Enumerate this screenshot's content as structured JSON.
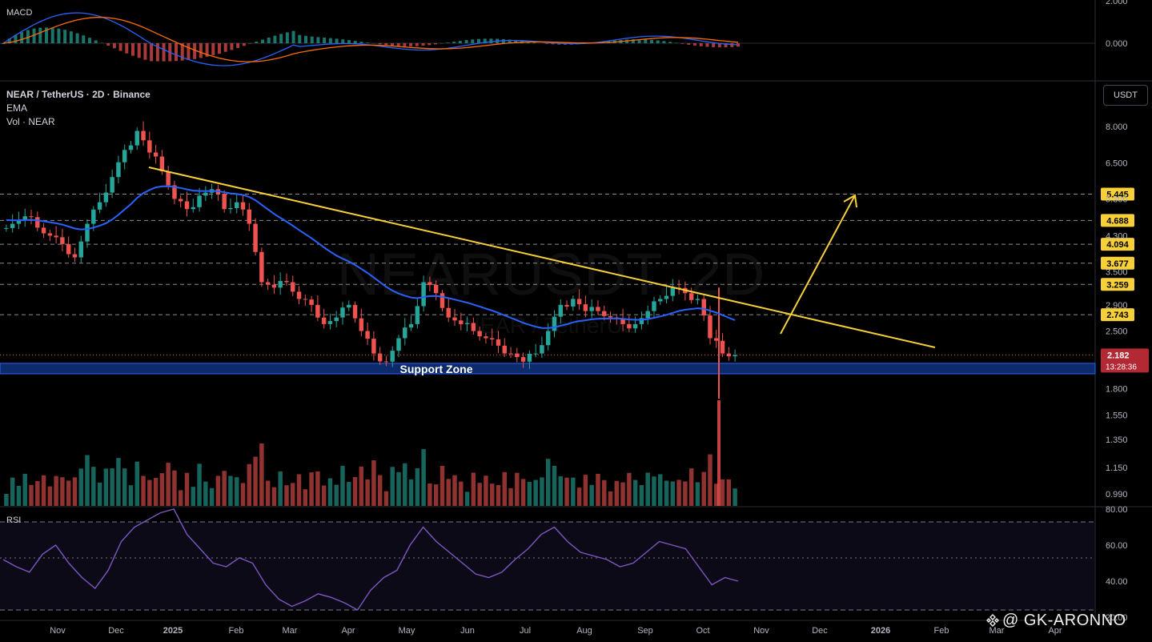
{
  "header": {
    "macd_label": "MACD",
    "symbol_line": "NEAR / TetherUS · 2D · Binance",
    "ema_label": "EMA",
    "vol_label": "Vol · NEAR",
    "rsi_label": "RSI",
    "currency_button": "USDT",
    "bg_watermark_main": "NEARUSDT, 2D",
    "bg_watermark_sub": "NEAR / TetherUS"
  },
  "annotations": {
    "support_zone_label": "Support Zone",
    "credit": "@ GK-ARONNO"
  },
  "colors": {
    "up": "#26a69a",
    "down": "#ef5350",
    "ema": "#2962ff",
    "trendline": "#f7d038",
    "support_fill": "#0d2a6b",
    "rsi": "#7e57c2",
    "macd_line": "#2962ff",
    "signal_line": "#ff6d00"
  },
  "chart_data": [
    {
      "type": "candlestick",
      "panel": "price",
      "y_scale": "log",
      "x_ticks": [
        "Nov",
        "Dec",
        "2025",
        "Feb",
        "Mar",
        "Apr",
        "May",
        "Jun",
        "Jul",
        "Aug",
        "Sep",
        "Oct",
        "Nov",
        "Dec",
        "2026",
        "Feb",
        "Mar",
        "Apr"
      ],
      "y_ticks": [
        "8.000",
        "6.500",
        "5.300",
        "4.300",
        "3.500",
        "2.900",
        "2.500",
        "1.800",
        "1.550",
        "1.350",
        "1.150",
        "0.990"
      ],
      "horizontal_levels": [
        "5.445",
        "4.688",
        "4.094",
        "3.677",
        "3.259",
        "2.743"
      ],
      "current_price": "2.182",
      "countdown": "13:28:36",
      "support_zone": [
        1.96,
        2.08
      ],
      "trendline": {
        "from": [
          "Dec 2024",
          6.3
        ],
        "to": [
          "Jan 2026",
          2.22
        ]
      },
      "projection_arrow": {
        "from": [
          "Nov 2025",
          2.45
        ],
        "to": [
          "Dec 2025",
          5.4
        ]
      },
      "closes_approx": [
        4.6,
        4.8,
        4.5,
        4.3,
        4.1,
        3.8,
        4.6,
        5.2,
        6.0,
        7.0,
        7.8,
        6.9,
        6.2,
        5.3,
        5.0,
        5.4,
        5.6,
        5.0,
        5.2,
        4.6,
        3.3,
        3.2,
        3.3,
        3.0,
        2.9,
        2.6,
        2.7,
        2.9,
        2.5,
        2.2,
        2.1,
        2.4,
        2.6,
        3.3,
        3.1,
        2.7,
        2.6,
        2.5,
        2.4,
        2.3,
        2.2,
        2.1,
        2.2,
        2.5,
        2.9,
        3.0,
        2.8,
        2.8,
        2.7,
        2.6,
        2.6,
        2.8,
        3.0,
        3.2,
        3.1,
        3.0,
        2.4,
        2.2,
        2.18
      ]
    },
    {
      "type": "bar",
      "panel": "volume",
      "series_name": "Vol · NEAR"
    },
    {
      "type": "line",
      "panel": "rsi",
      "y_ticks": [
        "80.00",
        "60.00",
        "40.00",
        "20.00"
      ],
      "values_approx": [
        52,
        48,
        45,
        55,
        60,
        50,
        42,
        36,
        46,
        62,
        70,
        74,
        78,
        80,
        66,
        58,
        50,
        48,
        53,
        50,
        38,
        30,
        26,
        29,
        33,
        31,
        28,
        24,
        35,
        42,
        46,
        60,
        70,
        62,
        56,
        50,
        44,
        42,
        45,
        52,
        58,
        66,
        70,
        62,
        56,
        54,
        52,
        48,
        50,
        56,
        62,
        60,
        58,
        48,
        38,
        42,
        40
      ]
    },
    {
      "type": "line",
      "panel": "macd",
      "y_ticks": [
        "2.000",
        "0.000"
      ]
    }
  ]
}
